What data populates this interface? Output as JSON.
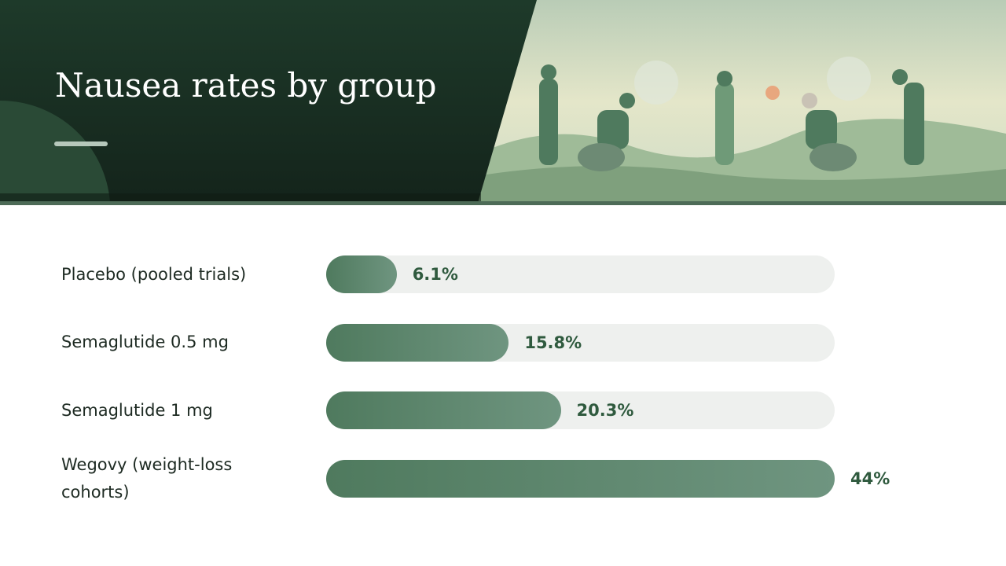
{
  "chart_data": {
    "type": "bar",
    "orientation": "horizontal",
    "title": "Nausea rates by group",
    "categories": [
      "Placebo (pooled trials)",
      "Semaglutide 0.5 mg",
      "Semaglutide 1 mg",
      "Wegovy (weight-loss cohorts)"
    ],
    "values": [
      6.1,
      15.8,
      20.3,
      44
    ],
    "value_labels": [
      "6.1%",
      "15.8%",
      "20.3%",
      "44%"
    ],
    "xlim": [
      0,
      44
    ],
    "color": "#4f7a5e"
  }
}
